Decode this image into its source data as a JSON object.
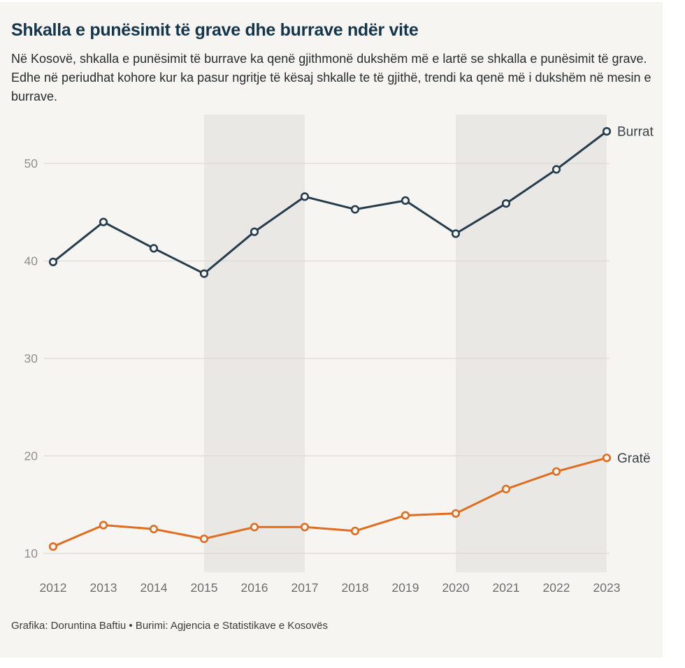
{
  "page": {
    "background": "#ffffff",
    "card_background": "#f7f5f1"
  },
  "header": {
    "title": "Shkalla e punësimit të grave dhe burrave ndër vite",
    "description": "Në Kosovë, shkalla e punësimit të burrave ka qenë gjithmonë dukshëm më e lartë se shkalla e punësimit të grave. Edhe në periudhat kohore kur ka pasur ngritje të kësaj shkalle te të gjithë, trendi ka qenë më i dukshëm në mesin e burrave."
  },
  "footer": {
    "credit": "Grafika: Doruntina Baftiu • Burimi: Agjencia e Statistikave e Kosovës"
  },
  "chart_data": {
    "type": "line",
    "title": "Shkalla e punësimit të grave dhe burrave ndër vite",
    "x": [
      2012,
      2013,
      2014,
      2015,
      2016,
      2017,
      2018,
      2019,
      2020,
      2021,
      2022,
      2023
    ],
    "series": [
      {
        "name": "Burrat",
        "color": "#253c4d",
        "values": [
          39.9,
          44.0,
          41.3,
          38.7,
          43.0,
          46.6,
          45.3,
          46.2,
          42.8,
          45.9,
          49.4,
          53.3
        ]
      },
      {
        "name": "Gratë",
        "color": "#e06c1e",
        "values": [
          10.7,
          12.9,
          12.5,
          11.5,
          12.7,
          12.7,
          12.3,
          13.9,
          14.1,
          16.6,
          18.4,
          19.8
        ]
      }
    ],
    "yticks": [
      10,
      20,
      30,
      40,
      50
    ],
    "ylim": [
      8,
      55.3
    ],
    "grid": true,
    "legend_position": "direct-label-right",
    "highlight_bands": [
      {
        "from": 2015,
        "to": 2017
      },
      {
        "from": 2020,
        "to": 2023
      }
    ],
    "style": {
      "band_color": "#eae8e4",
      "grid_color": "#d8d5d1",
      "ytick_color": "#8f8f8d",
      "xtick_color": "#6e6e6c",
      "marker_fill": "#f7f5f1",
      "series_label_color": "#394249"
    }
  }
}
